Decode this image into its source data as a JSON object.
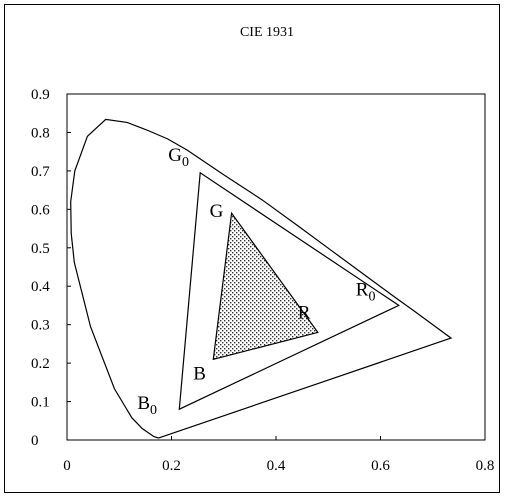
{
  "chart_data": {
    "type": "scatter",
    "title": "CIE 1931",
    "xlabel": "",
    "ylabel": "",
    "xlim": [
      0,
      0.8
    ],
    "ylim": [
      0,
      0.9
    ],
    "xticks": [
      "0",
      "0.2",
      "0.4",
      "0.6",
      "0.8"
    ],
    "yticks": [
      "0",
      "0.1",
      "0.2",
      "0.3",
      "0.4",
      "0.5",
      "0.6",
      "0.7",
      "0.8",
      "0.9"
    ],
    "grid": false,
    "spectral_locus": [
      [
        0.175,
        0.005
      ],
      [
        0.166,
        0.009
      ],
      [
        0.144,
        0.03
      ],
      [
        0.124,
        0.058
      ],
      [
        0.091,
        0.133
      ],
      [
        0.045,
        0.295
      ],
      [
        0.014,
        0.462
      ],
      [
        0.008,
        0.538
      ],
      [
        0.007,
        0.62
      ],
      [
        0.015,
        0.7
      ],
      [
        0.039,
        0.79
      ],
      [
        0.074,
        0.834
      ],
      [
        0.115,
        0.826
      ],
      [
        0.155,
        0.805
      ],
      [
        0.193,
        0.783
      ],
      [
        0.23,
        0.754
      ],
      [
        0.3,
        0.69
      ],
      [
        0.373,
        0.625
      ],
      [
        0.444,
        0.555
      ],
      [
        0.512,
        0.487
      ],
      [
        0.575,
        0.424
      ],
      [
        0.627,
        0.372
      ],
      [
        0.666,
        0.334
      ],
      [
        0.692,
        0.308
      ],
      [
        0.735,
        0.265
      ],
      [
        0.175,
        0.005
      ]
    ],
    "triangles": [
      {
        "vertices": [
          {
            "label": "R",
            "sub": "0",
            "x": 0.635,
            "y": 0.35
          },
          {
            "label": "G",
            "sub": "0",
            "x": 0.255,
            "y": 0.695
          },
          {
            "label": "B",
            "sub": "0",
            "x": 0.215,
            "y": 0.08
          }
        ],
        "filled": false
      },
      {
        "vertices": [
          {
            "label": "R",
            "sub": "",
            "x": 0.48,
            "y": 0.28
          },
          {
            "label": "G",
            "sub": "",
            "x": 0.315,
            "y": 0.59
          },
          {
            "label": "B",
            "sub": "",
            "x": 0.28,
            "y": 0.21
          }
        ],
        "filled": true,
        "fill_pattern": "dotted"
      }
    ]
  }
}
